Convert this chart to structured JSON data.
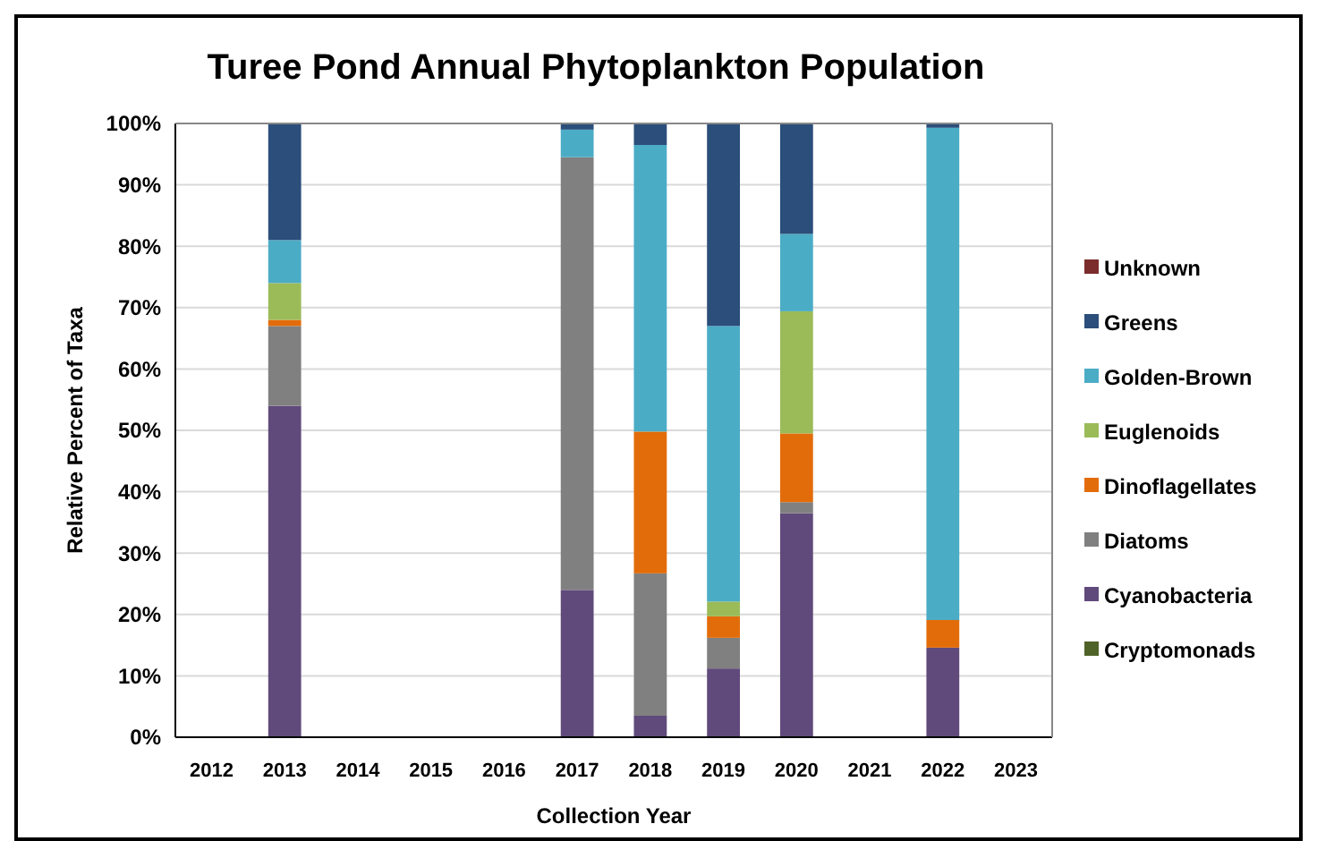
{
  "chart_data": {
    "type": "bar",
    "stacked": true,
    "title": "Turee Pond Annual Phytoplankton Population",
    "xlabel": "Collection Year",
    "ylabel": "Relative Percent of Taxa",
    "categories": [
      "2012",
      "2013",
      "2014",
      "2015",
      "2016",
      "2017",
      "2018",
      "2019",
      "2020",
      "2021",
      "2022",
      "2023"
    ],
    "series": [
      {
        "name": "Cryptomonads",
        "color": "#4f6228",
        "values": [
          null,
          0,
          null,
          null,
          null,
          0,
          0,
          0,
          0,
          null,
          0,
          null
        ]
      },
      {
        "name": "Cyanobacteria",
        "color": "#604a7b",
        "values": [
          null,
          54,
          null,
          null,
          null,
          24,
          3.5,
          11.2,
          36.5,
          null,
          14.6,
          null
        ]
      },
      {
        "name": "Diatoms",
        "color": "#808080",
        "values": [
          null,
          13,
          null,
          null,
          null,
          70.5,
          23.2,
          5,
          1.8,
          null,
          0,
          null
        ]
      },
      {
        "name": "Dinoflagellates",
        "color": "#e36c0a",
        "values": [
          null,
          1,
          null,
          null,
          null,
          0,
          23.1,
          3.5,
          11.2,
          null,
          4.5,
          null
        ]
      },
      {
        "name": "Euglenoids",
        "color": "#9bbb59",
        "values": [
          null,
          6,
          null,
          null,
          null,
          0,
          0,
          2.4,
          19.9,
          null,
          0,
          null
        ]
      },
      {
        "name": "Golden-Brown",
        "color": "#4bacc6",
        "values": [
          null,
          7,
          null,
          null,
          null,
          4.5,
          46.7,
          44.9,
          12.6,
          null,
          80.2,
          null
        ]
      },
      {
        "name": "Greens",
        "color": "#2b4e7a",
        "values": [
          null,
          19,
          null,
          null,
          null,
          1,
          3.5,
          33,
          18,
          null,
          0.7,
          null
        ]
      },
      {
        "name": "Unknown",
        "color": "#7b2c2c",
        "values": [
          null,
          0,
          null,
          null,
          null,
          0,
          0,
          0,
          0,
          null,
          0,
          null
        ]
      }
    ],
    "ylim": [
      0,
      100
    ],
    "yticks": [
      {
        "value": 0,
        "label": "0%"
      },
      {
        "value": 10,
        "label": "10%"
      },
      {
        "value": 20,
        "label": "20%"
      },
      {
        "value": 30,
        "label": "30%"
      },
      {
        "value": 40,
        "label": "40%"
      },
      {
        "value": 50,
        "label": "50%"
      },
      {
        "value": 60,
        "label": "60%"
      },
      {
        "value": 70,
        "label": "70%"
      },
      {
        "value": 80,
        "label": "80%"
      },
      {
        "value": 90,
        "label": "90%"
      },
      {
        "value": 100,
        "label": "100%"
      }
    ],
    "grid": "y",
    "legend": "right"
  }
}
